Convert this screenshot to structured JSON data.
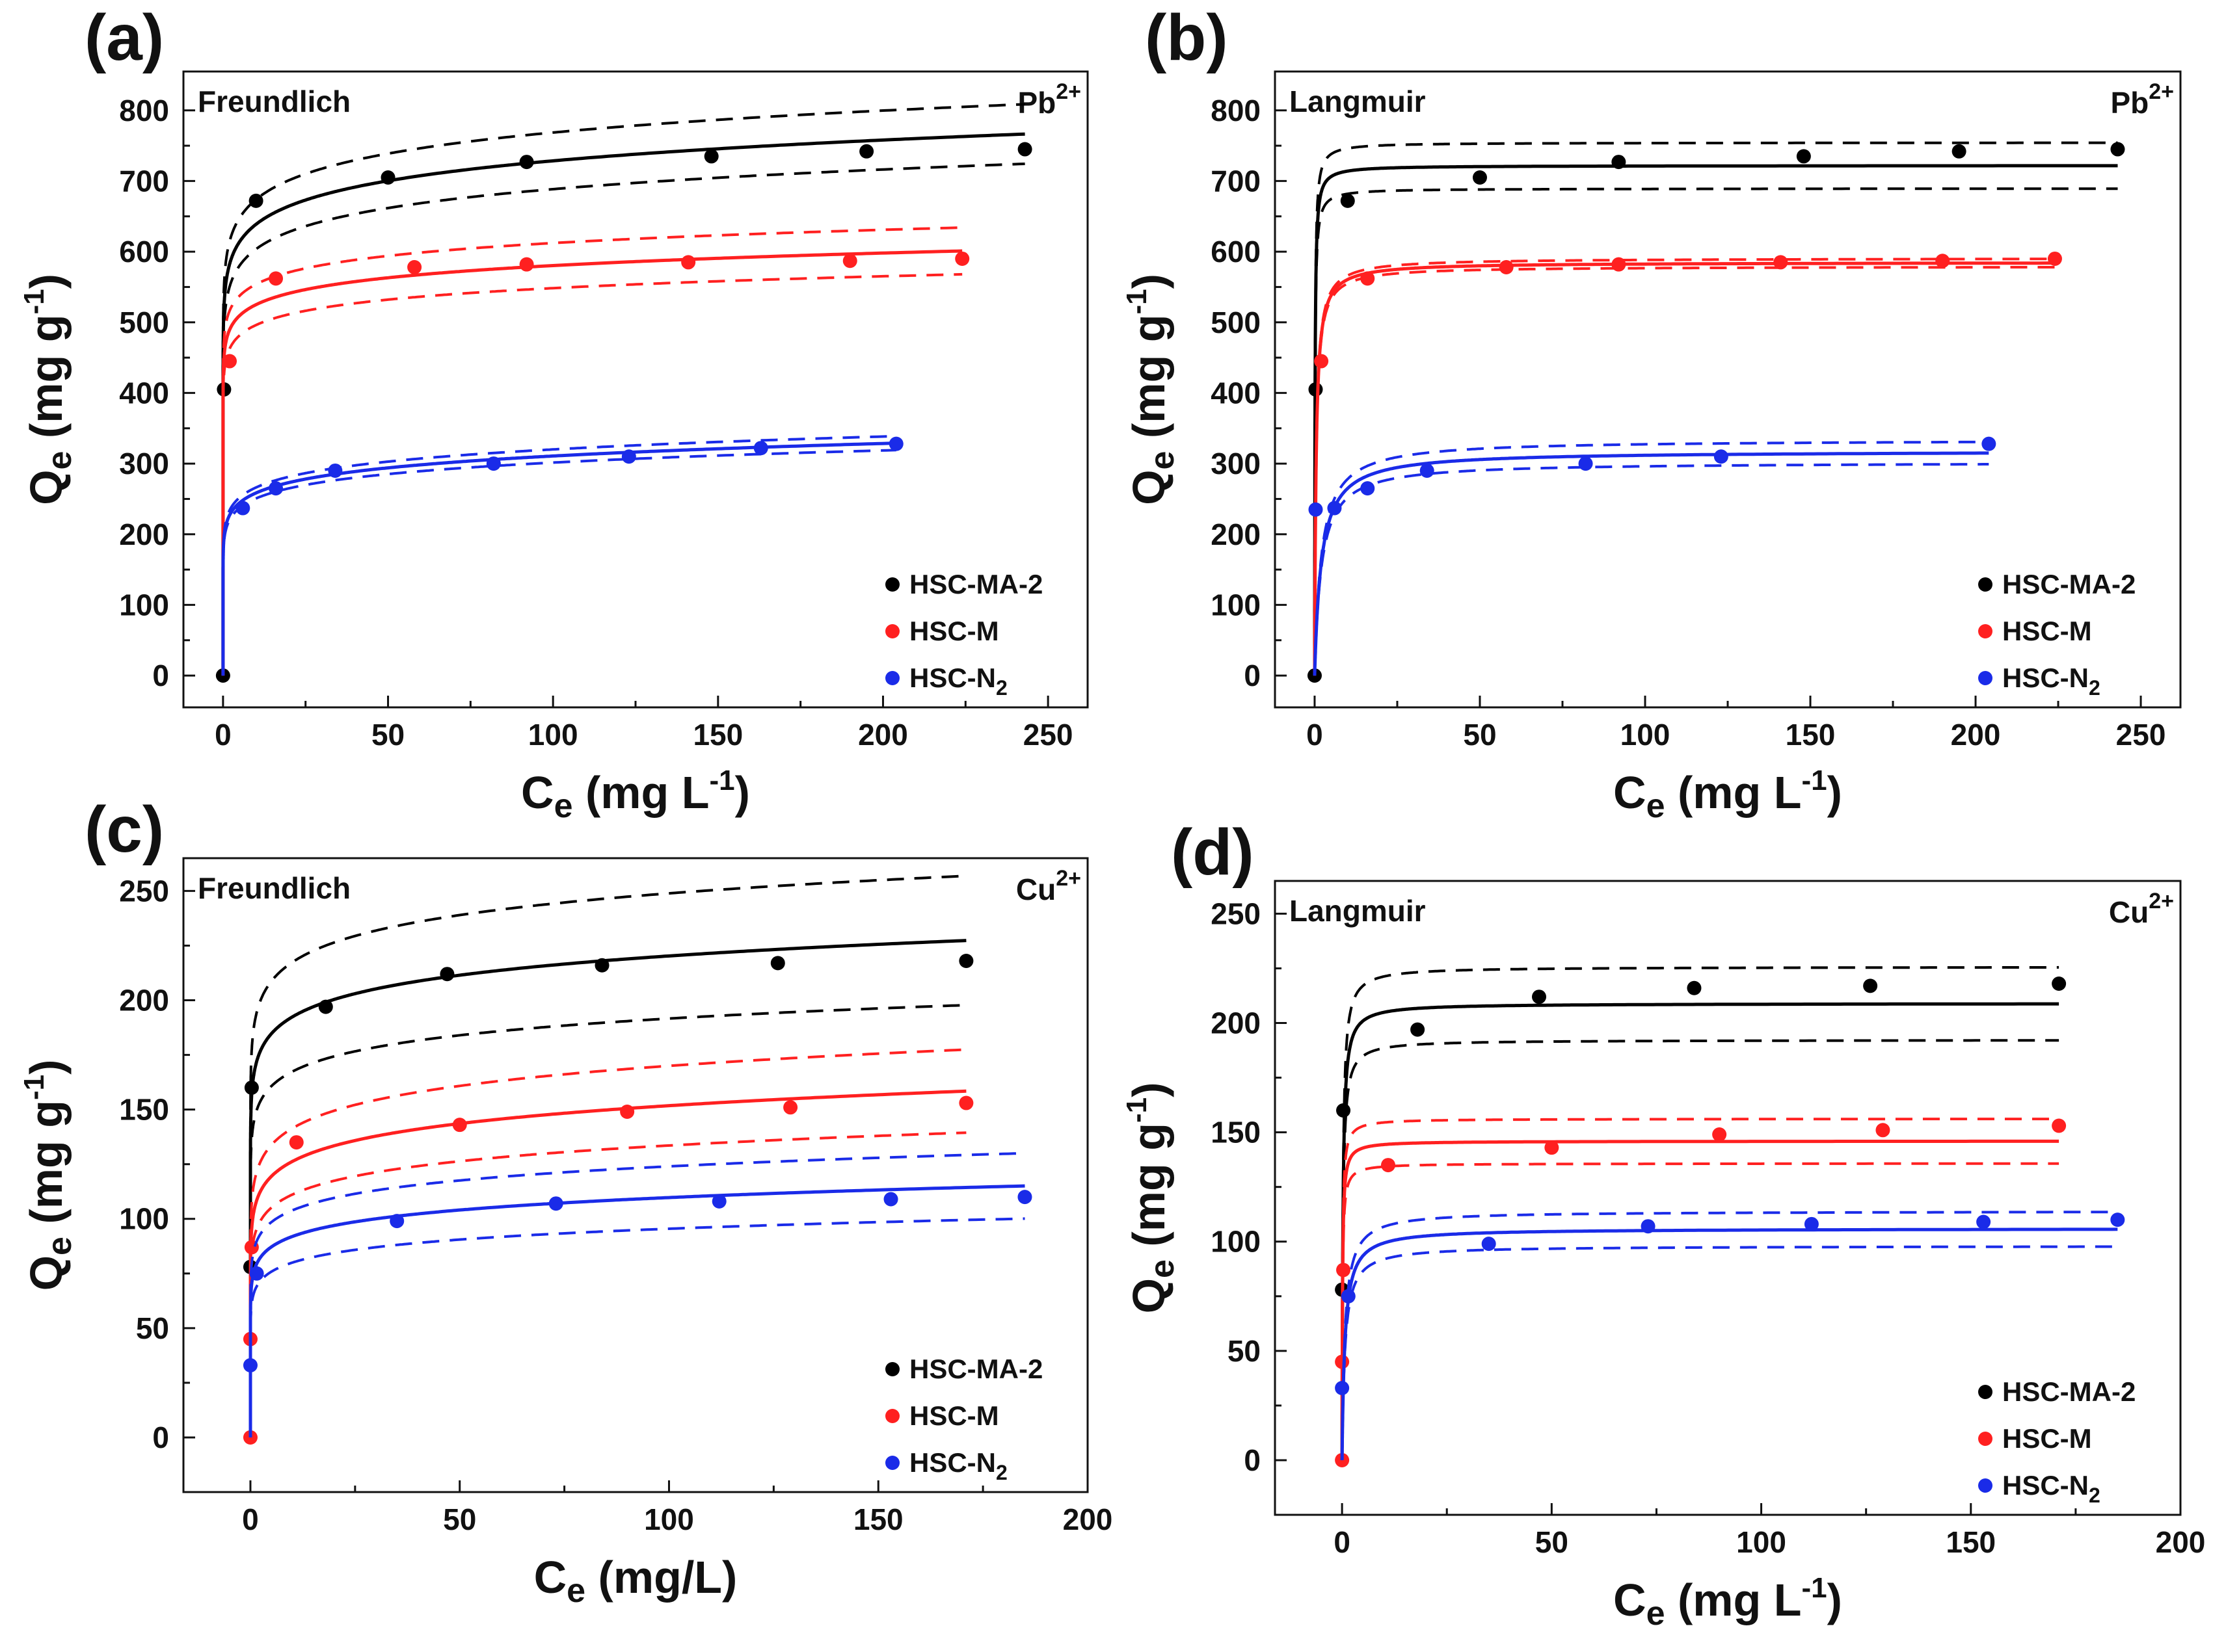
{
  "colors": {
    "HSC-MA-2": "#000000",
    "HSC-M": "#ff2020",
    "HSC-N2": "#1a2be8"
  },
  "chart_data": [
    {
      "type": "scatter",
      "panel": "(a)",
      "model": "Freundlich",
      "ion": {
        "base": "Pb",
        "sup": "2+"
      },
      "xlabel": {
        "main": "C",
        "sub": "e",
        "rest": " (mg L",
        "sup": "-1",
        "close": ")"
      },
      "ylabel": {
        "main": "Q",
        "sub": "e",
        "rest": " (mg g",
        "sup": "-1",
        "close": ")"
      },
      "xlim": [
        -12,
        262
      ],
      "ylim": [
        -45,
        855
      ],
      "xticks": [
        0,
        50,
        100,
        150,
        200,
        250
      ],
      "yticks": [
        0,
        100,
        200,
        300,
        400,
        500,
        600,
        700,
        800
      ],
      "legend_position": "bottom-right",
      "series": [
        {
          "name": "HSC-MA-2",
          "legend": {
            "main": "HSC-MA-2",
            "sub": ""
          },
          "color": "#000000",
          "x": [
            0,
            0.3,
            10,
            50,
            92,
            148,
            195,
            243
          ],
          "y": [
            0,
            405,
            672,
            705,
            727,
            735,
            742,
            745
          ],
          "fit": {
            "model": "freundlich",
            "k": 560,
            "n": 17.5,
            "band": 0.055,
            "xmax": 243
          }
        },
        {
          "name": "HSC-M",
          "legend": {
            "main": "HSC-M",
            "sub": ""
          },
          "color": "#ff2020",
          "x": [
            2,
            16,
            58,
            92,
            141,
            190,
            224
          ],
          "y": [
            445,
            562,
            578,
            582,
            585,
            587,
            590
          ],
          "fit": {
            "model": "freundlich",
            "k": 475,
            "n": 23,
            "band": 0.055,
            "xmax": 224
          }
        },
        {
          "name": "HSC-N2",
          "legend": {
            "main": "HSC-N",
            "sub": "2"
          },
          "color": "#1a2be8",
          "x": [
            6,
            16,
            34,
            82,
            123,
            163,
            204
          ],
          "y": [
            237,
            265,
            290,
            300,
            310,
            322,
            328
          ],
          "fit": {
            "model": "freundlich",
            "k": 215,
            "n": 12.5,
            "band": 0.03,
            "xmax": 204
          }
        }
      ]
    },
    {
      "type": "scatter",
      "panel": "(b)",
      "model": "Langmuir",
      "ion": {
        "base": "Pb",
        "sup": "2+"
      },
      "xlabel": {
        "main": "C",
        "sub": "e",
        "rest": " (mg L",
        "sup": "-1",
        "close": ")"
      },
      "ylabel": {
        "main": "Q",
        "sub": "e",
        "rest": " (mg g",
        "sup": "-1",
        "close": ")"
      },
      "xlim": [
        -12,
        262
      ],
      "ylim": [
        -45,
        855
      ],
      "xticks": [
        0,
        50,
        100,
        150,
        200,
        250
      ],
      "yticks": [
        0,
        100,
        200,
        300,
        400,
        500,
        600,
        700,
        800
      ],
      "legend_position": "bottom-right",
      "series": [
        {
          "name": "HSC-MA-2",
          "legend": {
            "main": "HSC-MA-2",
            "sub": ""
          },
          "color": "#000000",
          "x": [
            0,
            0.3,
            10,
            50,
            92,
            148,
            195,
            243
          ],
          "y": [
            0,
            405,
            672,
            705,
            727,
            735,
            742,
            745
          ],
          "fit": {
            "model": "langmuir",
            "qm": 722,
            "kl": 9,
            "band": 0.045,
            "xmax": 243
          }
        },
        {
          "name": "HSC-M",
          "legend": {
            "main": "HSC-M",
            "sub": ""
          },
          "color": "#ff2020",
          "x": [
            2,
            16,
            58,
            92,
            141,
            190,
            224
          ],
          "y": [
            445,
            562,
            578,
            582,
            585,
            587,
            590
          ],
          "fit": {
            "model": "langmuir",
            "qm": 585,
            "kl": 2.3,
            "band": 0.01,
            "xmax": 224
          }
        },
        {
          "name": "HSC-N2",
          "legend": {
            "main": "HSC-N",
            "sub": "2"
          },
          "color": "#1a2be8",
          "x": [
            0.3,
            6,
            16,
            34,
            82,
            123,
            204
          ],
          "y": [
            235,
            237,
            265,
            290,
            300,
            310,
            328
          ],
          "fit": {
            "model": "langmuir",
            "qm": 318,
            "kl": 0.5,
            "band": 0.05,
            "xmax": 204
          }
        }
      ]
    },
    {
      "type": "scatter",
      "panel": "(c)",
      "model": "Freundlich",
      "ion": {
        "base": "Cu",
        "sup": "2+"
      },
      "xlabel": {
        "main": "C",
        "sub": "e",
        "rest": " (mg/L)",
        "sup": "",
        "close": ""
      },
      "ylabel": {
        "main": "Q",
        "sub": "e",
        "rest": " (mg g",
        "sup": "-1",
        "close": ")"
      },
      "xlim": [
        -16,
        200
      ],
      "ylim": [
        -25,
        265
      ],
      "xticks": [
        0,
        50,
        100,
        150,
        200
      ],
      "yticks": [
        0,
        50,
        100,
        150,
        200,
        250
      ],
      "legend_position": "bottom-right",
      "series": [
        {
          "name": "HSC-MA-2",
          "legend": {
            "main": "HSC-MA-2",
            "sub": ""
          },
          "color": "#000000",
          "x": [
            0,
            0.3,
            18,
            47,
            84,
            126,
            171
          ],
          "y": [
            78,
            160,
            197,
            212,
            216,
            217,
            218
          ],
          "fit": {
            "model": "freundlich",
            "k": 168,
            "n": 17,
            "band": 0.13,
            "xmax": 171
          }
        },
        {
          "name": "HSC-M",
          "legend": {
            "main": "HSC-M",
            "sub": ""
          },
          "color": "#ff2020",
          "x": [
            0,
            0,
            0.3,
            11,
            50,
            90,
            129,
            171
          ],
          "y": [
            0,
            45,
            87,
            135,
            143,
            149,
            151,
            153
          ],
          "fit": {
            "model": "freundlich",
            "k": 105,
            "n": 12.5,
            "band": 0.12,
            "xmax": 171
          }
        },
        {
          "name": "HSC-N2",
          "legend": {
            "main": "HSC-N",
            "sub": "2"
          },
          "color": "#1a2be8",
          "x": [
            0,
            1.5,
            35,
            73,
            112,
            153,
            185
          ],
          "y": [
            33,
            75,
            99,
            107,
            108,
            109,
            110
          ],
          "fit": {
            "model": "freundlich",
            "k": 77,
            "n": 13,
            "band": 0.13,
            "xmax": 185
          }
        }
      ]
    },
    {
      "type": "scatter",
      "panel": "(d)",
      "model": "Langmuir",
      "ion": {
        "base": "Cu",
        "sup": "2+"
      },
      "xlabel": {
        "main": "C",
        "sub": "e",
        "rest": " (mg L",
        "sup": "-1",
        "close": ")"
      },
      "ylabel": {
        "main": "Q",
        "sub": "e",
        "rest": " (mg g",
        "sup": "-1",
        "close": ")"
      },
      "xlim": [
        -16,
        200
      ],
      "ylim": [
        -25,
        265
      ],
      "xticks": [
        0,
        50,
        100,
        150,
        200
      ],
      "yticks": [
        0,
        50,
        100,
        150,
        200,
        250
      ],
      "legend_position": "bottom-right",
      "series": [
        {
          "name": "HSC-MA-2",
          "legend": {
            "main": "HSC-MA-2",
            "sub": ""
          },
          "color": "#000000",
          "x": [
            0,
            0.3,
            18,
            47,
            84,
            126,
            171
          ],
          "y": [
            78,
            160,
            197,
            212,
            216,
            217,
            218
          ],
          "fit": {
            "model": "langmuir",
            "qm": 209,
            "kl": 5,
            "band": 0.08,
            "xmax": 171
          }
        },
        {
          "name": "HSC-M",
          "legend": {
            "main": "HSC-M",
            "sub": ""
          },
          "color": "#ff2020",
          "x": [
            0,
            0,
            0.3,
            11,
            50,
            90,
            129,
            171
          ],
          "y": [
            0,
            45,
            87,
            135,
            143,
            149,
            151,
            153
          ],
          "fit": {
            "model": "langmuir",
            "qm": 146,
            "kl": 9,
            "band": 0.07,
            "xmax": 171
          }
        },
        {
          "name": "HSC-N2",
          "legend": {
            "main": "HSC-N",
            "sub": "2"
          },
          "color": "#1a2be8",
          "x": [
            0,
            1.5,
            35,
            73,
            112,
            153,
            185
          ],
          "y": [
            33,
            75,
            99,
            107,
            108,
            109,
            110
          ],
          "fit": {
            "model": "langmuir",
            "qm": 106,
            "kl": 1.5,
            "band": 0.075,
            "xmax": 185
          }
        }
      ]
    }
  ]
}
